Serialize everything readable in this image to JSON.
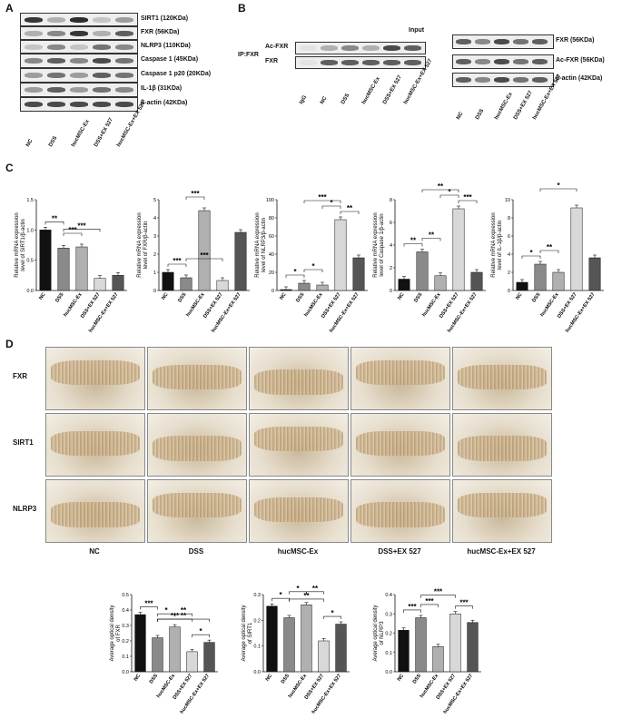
{
  "panels": {
    "a": "A",
    "b": "B",
    "c": "C",
    "d": "D"
  },
  "panelA": {
    "blot_labels": [
      "SIRT1 (120KDa)",
      "FXR (56KDa)",
      "NLRP3 (110KDa)",
      "Caspase 1 (45KDa)",
      "Caspase 1 p20 (20KDa)",
      "IL-1β (31KDa)",
      "β-actin (42KDa)"
    ],
    "lanes": [
      "NC",
      "DSS",
      "hucMSC-Ex",
      "DSS+EX 527",
      "hucMSC-Ex+EX 527"
    ]
  },
  "panelB": {
    "input_title": "Input",
    "ip_label": "IP:FXR",
    "ip_blot_labels": [
      "Ac-FXR",
      "FXR"
    ],
    "ip_lanes": [
      "IgG",
      "NC",
      "DSS",
      "hucMSC-Ex",
      "DSS+EX 527",
      "hucMSC-Ex+EX 527"
    ],
    "input_blot_labels": [
      "FXR (56KDa)",
      "Ac-FXR (56KDa)",
      "β-actin (42KDa)"
    ],
    "input_lanes": [
      "NC",
      "DSS",
      "hucMSC-Ex",
      "DSS+EX 527",
      "hucMSC-Ex+EX 527"
    ]
  },
  "panelC": {
    "charts": [
      {
        "ylabel1": "Relative mRNA expression",
        "ylabel2": "level of SIRT1/β-actin",
        "ymax": 1.5,
        "ticks": [
          "0.0",
          "0.5",
          "1.0",
          "1.5"
        ],
        "tickvals": [
          0,
          0.5,
          1.0,
          1.5
        ],
        "values": [
          1.0,
          0.7,
          0.72,
          0.2,
          0.25
        ],
        "sig": [
          "**",
          "***",
          "***"
        ]
      },
      {
        "ylabel1": "Relative mRNA expression",
        "ylabel2": "level of FXR/β-actin",
        "ymax": 5,
        "ticks": [
          "0",
          "1",
          "2",
          "3",
          "4",
          "5"
        ],
        "tickvals": [
          0,
          1,
          2,
          3,
          4,
          5
        ],
        "values": [
          1.0,
          0.7,
          4.4,
          0.55,
          3.2
        ],
        "sig": [
          "***",
          "***",
          "***"
        ]
      },
      {
        "ylabel1": "Relative mRNA expression",
        "ylabel2": "level of NLRP3/β-actin",
        "ymax": 100,
        "ticks": [
          "0",
          "20",
          "40",
          "60",
          "80",
          "100"
        ],
        "tickvals": [
          0,
          20,
          40,
          60,
          80,
          100
        ],
        "values": [
          1.0,
          8,
          6,
          78,
          36
        ],
        "sig": [
          "*",
          "*",
          "***",
          "**",
          "*"
        ]
      },
      {
        "ylabel1": "Relative mRNA expression",
        "ylabel2": "level of Caspase 1/β-actin",
        "ymax": 8,
        "ticks": [
          "0",
          "2",
          "4",
          "6",
          "8"
        ],
        "tickvals": [
          0,
          2,
          4,
          6,
          8
        ],
        "values": [
          1.0,
          3.4,
          1.3,
          7.2,
          1.6
        ],
        "sig": [
          "**",
          "**",
          "**",
          "***",
          "*"
        ]
      },
      {
        "ylabel1": "Relative mRNA expression",
        "ylabel2": "level of IL-1β/β-actin",
        "ymax": 10,
        "ticks": [
          "0",
          "2",
          "4",
          "6",
          "8",
          "10"
        ],
        "tickvals": [
          0,
          2,
          4,
          6,
          8,
          10
        ],
        "values": [
          0.9,
          2.9,
          2.0,
          9.1,
          3.6
        ],
        "sig": [
          "*",
          "**",
          "*"
        ]
      }
    ],
    "categories": [
      "NC",
      "DSS",
      "hucMSC-Ex",
      "DSS+EX 527",
      "hucMSC-Ex+EX 527"
    ],
    "colors": [
      "#111111",
      "#8a8a8a",
      "#b0b0b0",
      "#d8d8d8",
      "#555555"
    ]
  },
  "panelD": {
    "row_labels": [
      "FXR",
      "SIRT1",
      "NLRP3"
    ],
    "col_labels": [
      "NC",
      "DSS",
      "hucMSC-Ex",
      "DSS+EX 527",
      "hucMSC-Ex+EX 527"
    ]
  },
  "panelE": {
    "charts": [
      {
        "ylabel1": "Average optical density",
        "ylabel2": "of FXR",
        "ymax": 0.5,
        "ticks": [
          "0.0",
          "0.1",
          "0.2",
          "0.3",
          "0.4",
          "0.5"
        ],
        "tickvals": [
          0,
          0.1,
          0.2,
          0.3,
          0.4,
          0.5
        ],
        "values": [
          0.37,
          0.22,
          0.29,
          0.13,
          0.19
        ],
        "sig": [
          "***",
          "*",
          "***",
          "*",
          "**",
          "**"
        ]
      },
      {
        "ylabel1": "Average optical density",
        "ylabel2": "of SIRT1",
        "ymax": 0.3,
        "ticks": [
          "0.0",
          "0.1",
          "0.2",
          "0.3"
        ],
        "tickvals": [
          0,
          0.1,
          0.2,
          0.3
        ],
        "values": [
          0.255,
          0.21,
          0.26,
          0.12,
          0.185
        ],
        "sig": [
          "*",
          "*",
          "**",
          "*",
          "**"
        ]
      },
      {
        "ylabel1": "Average optical density",
        "ylabel2": "of NLRP3",
        "ymax": 0.4,
        "ticks": [
          "0.0",
          "0.1",
          "0.2",
          "0.3",
          "0.4"
        ],
        "tickvals": [
          0,
          0.1,
          0.2,
          0.3,
          0.4
        ],
        "values": [
          0.215,
          0.28,
          0.13,
          0.3,
          0.255
        ],
        "sig": [
          "***",
          "***",
          "***",
          "***"
        ]
      }
    ],
    "categories": [
      "NC",
      "DSS",
      "hucMSC-Ex",
      "DSS+EX 527",
      "hucMSC-Ex+EX 527"
    ]
  },
  "chart_data": [
    {
      "type": "bar",
      "ylabel": "Relative mRNA expression level of SIRT1/β-actin",
      "categories": [
        "NC",
        "DSS",
        "hucMSC-Ex",
        "DSS+EX 527",
        "hucMSC-Ex+EX 527"
      ],
      "values": [
        1.0,
        0.7,
        0.72,
        0.2,
        0.25
      ],
      "ylim": [
        0,
        1.5
      ]
    },
    {
      "type": "bar",
      "ylabel": "Relative mRNA expression level of FXR/β-actin",
      "categories": [
        "NC",
        "DSS",
        "hucMSC-Ex",
        "DSS+EX 527",
        "hucMSC-Ex+EX 527"
      ],
      "values": [
        1.0,
        0.7,
        4.4,
        0.55,
        3.2
      ],
      "ylim": [
        0,
        5
      ]
    },
    {
      "type": "bar",
      "ylabel": "Relative mRNA expression level of NLRP3/β-actin",
      "categories": [
        "NC",
        "DSS",
        "hucMSC-Ex",
        "DSS+EX 527",
        "hucMSC-Ex+EX 527"
      ],
      "values": [
        1.0,
        8,
        6,
        78,
        36
      ],
      "ylim": [
        0,
        100
      ]
    },
    {
      "type": "bar",
      "ylabel": "Relative mRNA expression level of Caspase 1/β-actin",
      "categories": [
        "NC",
        "DSS",
        "hucMSC-Ex",
        "DSS+EX 527",
        "hucMSC-Ex+EX 527"
      ],
      "values": [
        1.0,
        3.4,
        1.3,
        7.2,
        1.6
      ],
      "ylim": [
        0,
        8
      ]
    },
    {
      "type": "bar",
      "ylabel": "Relative mRNA expression level of IL-1β/β-actin",
      "categories": [
        "NC",
        "DSS",
        "hucMSC-Ex",
        "DSS+EX 527",
        "hucMSC-Ex+EX 527"
      ],
      "values": [
        0.9,
        2.9,
        2.0,
        9.1,
        3.6
      ],
      "ylim": [
        0,
        10
      ]
    },
    {
      "type": "bar",
      "ylabel": "Average optical density of FXR",
      "categories": [
        "NC",
        "DSS",
        "hucMSC-Ex",
        "DSS+EX 527",
        "hucMSC-Ex+EX 527"
      ],
      "values": [
        0.37,
        0.22,
        0.29,
        0.13,
        0.19
      ],
      "ylim": [
        0,
        0.5
      ]
    },
    {
      "type": "bar",
      "ylabel": "Average optical density of SIRT1",
      "categories": [
        "NC",
        "DSS",
        "hucMSC-Ex",
        "DSS+EX 527",
        "hucMSC-Ex+EX 527"
      ],
      "values": [
        0.255,
        0.21,
        0.26,
        0.12,
        0.185
      ],
      "ylim": [
        0,
        0.3
      ]
    },
    {
      "type": "bar",
      "ylabel": "Average optical density of NLRP3",
      "categories": [
        "NC",
        "DSS",
        "hucMSC-Ex",
        "DSS+EX 527",
        "hucMSC-Ex+EX 527"
      ],
      "values": [
        0.215,
        0.28,
        0.13,
        0.3,
        0.255
      ],
      "ylim": [
        0,
        0.4
      ]
    }
  ]
}
